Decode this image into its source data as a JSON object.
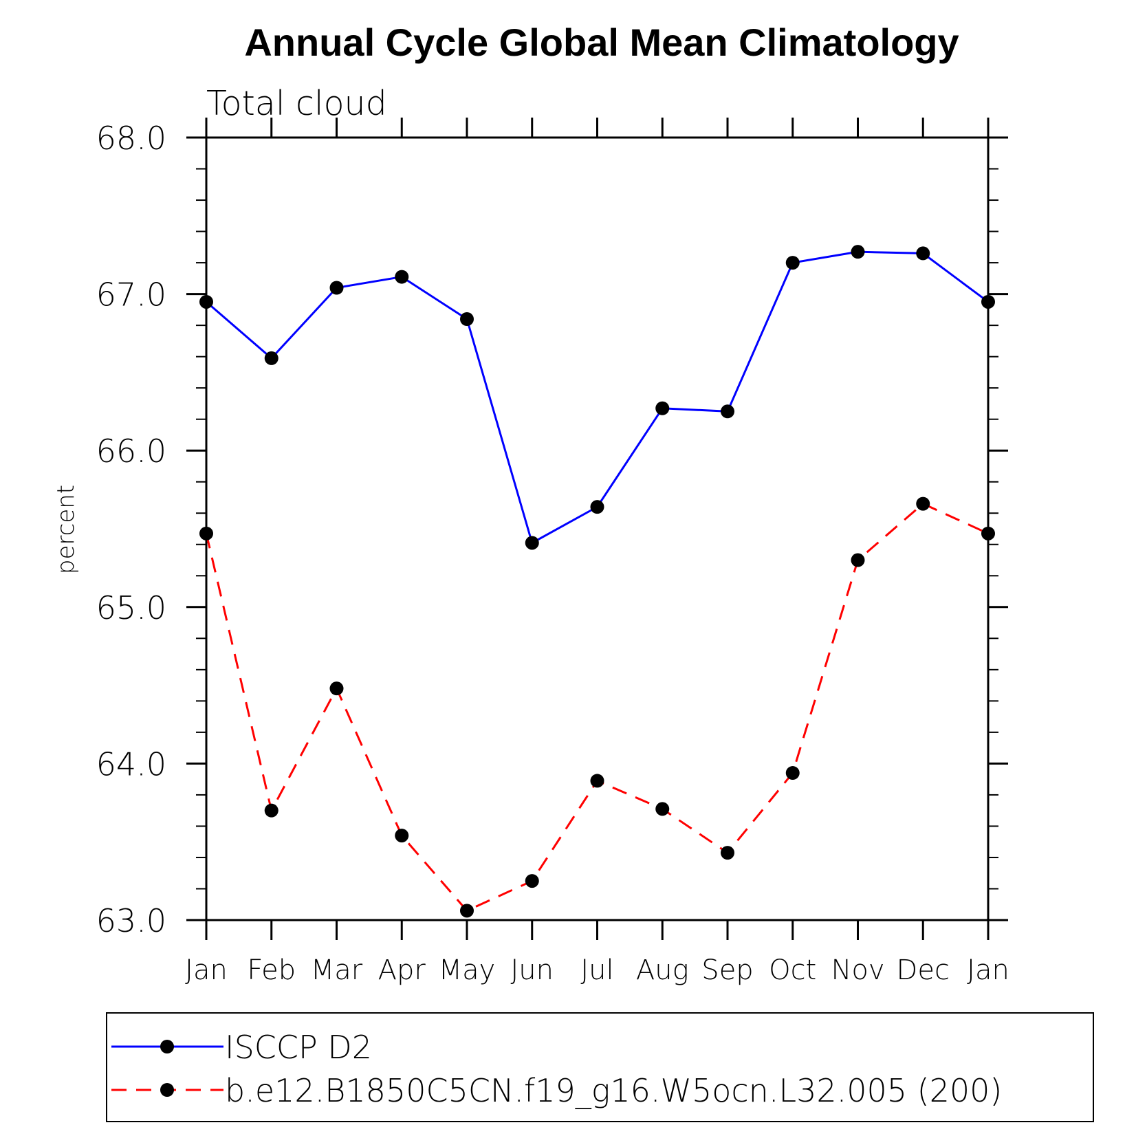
{
  "chart_data": {
    "type": "line",
    "title": "Annual Cycle Global Mean Climatology",
    "subtitle": "Total cloud",
    "ylabel": "percent",
    "xlabel": "",
    "categories": [
      "Jan",
      "Feb",
      "Mar",
      "Apr",
      "May",
      "Jun",
      "Jul",
      "Aug",
      "Sep",
      "Oct",
      "Nov",
      "Dec",
      "Jan"
    ],
    "ylim": [
      63.0,
      68.0
    ],
    "yticks": [
      "63.0",
      "64.0",
      "65.0",
      "66.0",
      "67.0",
      "68.0"
    ],
    "grid": false,
    "legend_position": "bottom",
    "series": [
      {
        "name": "ISCCP D2",
        "color": "#0000ff",
        "style": "solid",
        "marker": "filled-circle",
        "values": [
          66.95,
          66.59,
          67.04,
          67.11,
          66.84,
          65.41,
          65.64,
          66.27,
          66.25,
          67.2,
          67.27,
          67.26,
          66.95
        ]
      },
      {
        "name": "b.e12.B1850C5CN.f19_g16.W5ocn.L32.005 (200)",
        "color": "#ff0000",
        "style": "dashed",
        "marker": "filled-circle",
        "values": [
          65.47,
          63.7,
          64.48,
          63.54,
          63.06,
          63.25,
          63.89,
          63.71,
          63.43,
          63.94,
          65.3,
          65.66,
          65.47
        ]
      }
    ]
  }
}
